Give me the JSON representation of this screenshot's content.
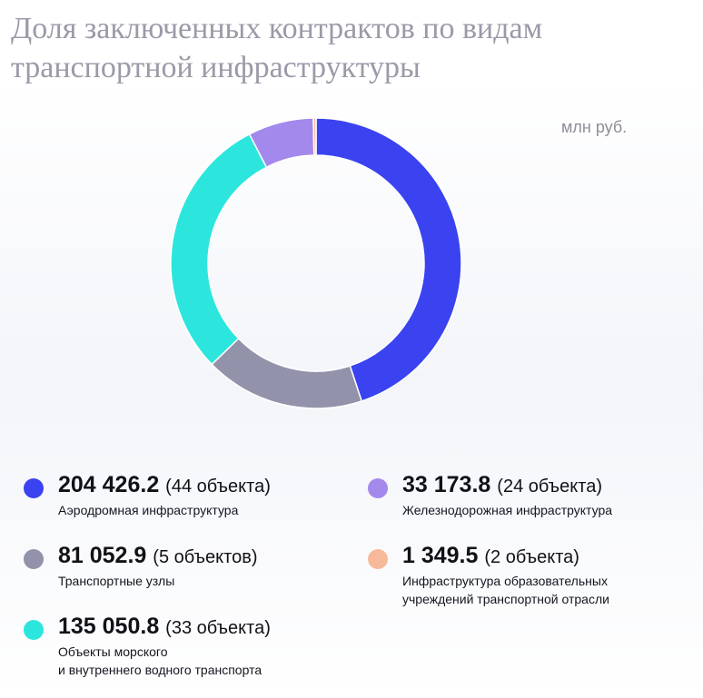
{
  "chart_data": {
    "type": "pie",
    "title": "Доля заключенных контрактов по видам транспортной инфраструктуры",
    "unit": "млн руб.",
    "slices": [
      {
        "label": "Аэродромная инфраструктура",
        "value": 204426.2,
        "value_text": "204 426.2",
        "count_text": "(44 объекта)",
        "color": "#3a43ef"
      },
      {
        "label": "Транспортные узлы",
        "value": 81052.9,
        "value_text": "81 052.9",
        "count_text": "(5 объектов)",
        "color": "#9293ab"
      },
      {
        "label": "Объекты морского и внутреннего водного транспорта",
        "label_lines": [
          "Объекты морского",
          "и внутреннего водного транспорта"
        ],
        "value": 135050.8,
        "value_text": "135 050.8",
        "count_text": "(33 объекта)",
        "color": "#2ce6de"
      },
      {
        "label": "Железнодорожная инфраструктура",
        "value": 33173.8,
        "value_text": "33 173.8",
        "count_text": "(24 объекта)",
        "color": "#a389eb"
      },
      {
        "label": "Инфраструктура образовательных учреждений транспортной отрасли",
        "label_lines": [
          "Инфраструктура образовательных",
          "учреждений транспортной отрасли"
        ],
        "value": 1349.5,
        "value_text": "1 349.5",
        "count_text": "(2 объекта)",
        "color": "#f7b99a"
      }
    ]
  }
}
